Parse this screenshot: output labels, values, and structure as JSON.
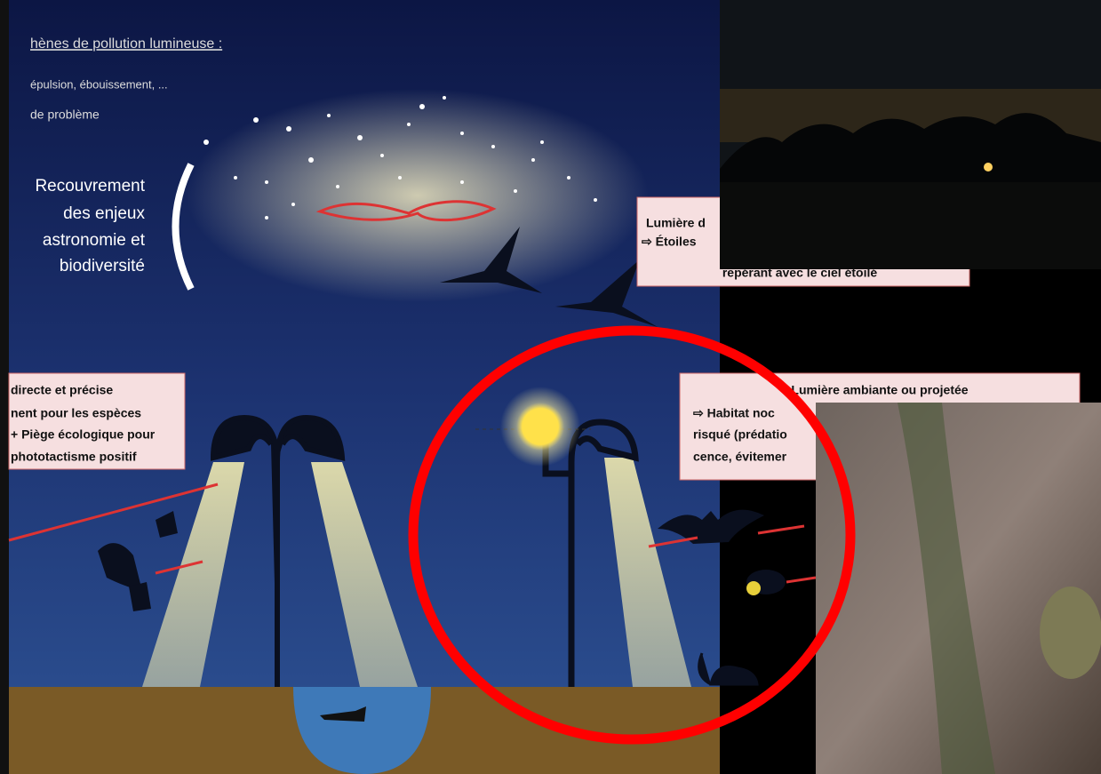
{
  "slide": {
    "heading": "hènes de pollution lumineuse :",
    "bullets": [
      "épulsion, ébouissement, ...",
      "de problème"
    ],
    "overlap_note": [
      "Recouvrement",
      "des enjeux",
      "astronomie et",
      "biodiversité"
    ],
    "callout_sky": [
      "Lumière d",
      "⇨ Étoiles",
      "repérant avec le ciel étoilé"
    ],
    "callout_direct": [
      "directe et précise",
      "nent pour les espèces",
      "+ Piège écologique pour",
      "phototactisme positif"
    ],
    "callout_ambient": [
      "Lumière ambiante ou projetée",
      "⇨ Habitat noc",
      "risqué (prédatio",
      "cence, évitemer"
    ]
  }
}
